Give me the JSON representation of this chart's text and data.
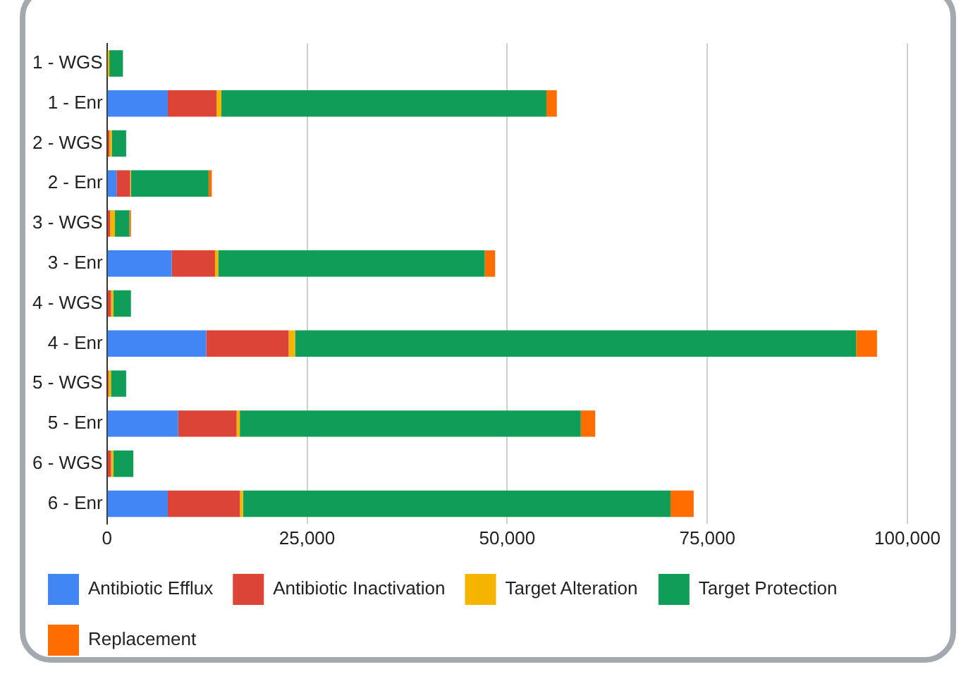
{
  "chart_data": {
    "type": "bar",
    "orientation": "horizontal",
    "stacked": true,
    "categories": [
      "1 - WGS",
      "1 - Enr",
      "2 - WGS",
      "2 - Enr",
      "3 - WGS",
      "3 - Enr",
      "4 - WGS",
      "4 - Enr",
      "5 - WGS",
      "5 - Enr",
      "6 - WGS",
      "6 - Enr"
    ],
    "series": [
      {
        "name": "Antibiotic Efflux",
        "color": "#4285f4",
        "values": [
          0,
          7600,
          0,
          1200,
          0,
          8100,
          0,
          12400,
          0,
          8900,
          0,
          7600
        ]
      },
      {
        "name": "Antibiotic Inactivation",
        "color": "#db4437",
        "values": [
          0,
          6100,
          300,
          1700,
          400,
          5400,
          500,
          10300,
          200,
          7300,
          500,
          9000
        ]
      },
      {
        "name": "Target Alteration",
        "color": "#f4b400",
        "values": [
          300,
          600,
          300,
          100,
          600,
          400,
          300,
          800,
          300,
          400,
          300,
          400
        ]
      },
      {
        "name": "Target Protection",
        "color": "#0f9d58",
        "values": [
          1700,
          40600,
          1800,
          9700,
          1800,
          33300,
          2200,
          70100,
          1900,
          42600,
          2500,
          53400
        ]
      },
      {
        "name": "Replacement",
        "color": "#ff6d01",
        "values": [
          0,
          1300,
          0,
          400,
          200,
          1300,
          0,
          2600,
          0,
          1800,
          0,
          2900
        ]
      }
    ],
    "xlim": [
      0,
      100000
    ],
    "xticks": [
      0,
      {
        "value": 25000,
        "label": "25,000"
      },
      {
        "value": 50000,
        "label": "50,000"
      },
      {
        "value": 75000,
        "label": "75,000"
      },
      {
        "value": 100000,
        "label": "100,000"
      }
    ],
    "grid": "x",
    "legend": "bottom"
  }
}
